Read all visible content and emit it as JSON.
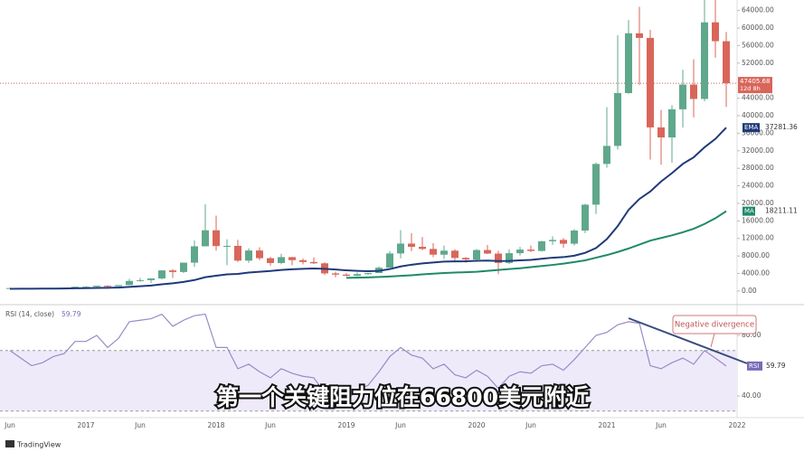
{
  "chart_data": {
    "type": "candlestick",
    "subtitle": "第一个关键阻力位在66800美元附近",
    "annotation": "Negative divergence",
    "brand": "TradingView",
    "countdown": "12d 8h",
    "up_color": "#5fa88c",
    "down_color": "#d9665a",
    "categories": [
      "Jun",
      null,
      null,
      null,
      null,
      null,
      null,
      "2017",
      null,
      null,
      null,
      null,
      "Jun",
      null,
      null,
      null,
      null,
      null,
      null,
      "2018",
      null,
      null,
      null,
      null,
      "Jun",
      null,
      null,
      null,
      null,
      null,
      null,
      "2019",
      null,
      null,
      null,
      null,
      "Jun",
      null,
      null,
      null,
      null,
      null,
      null,
      "2020",
      null,
      null,
      null,
      null,
      "Jun",
      null,
      null,
      null,
      null,
      null,
      null,
      "2021",
      null,
      null,
      null,
      null,
      "Jun",
      null,
      null,
      null,
      null,
      null,
      null,
      "2022"
    ],
    "ohlc": [
      [
        531,
        780,
        500,
        673
      ],
      [
        673,
        703,
        605,
        624
      ],
      [
        624,
        626,
        535,
        575
      ],
      [
        575,
        610,
        570,
        609
      ],
      [
        609,
        740,
        605,
        700
      ],
      [
        700,
        755,
        680,
        742
      ],
      [
        742,
        980,
        740,
        963
      ],
      [
        963,
        1150,
        750,
        970
      ],
      [
        970,
        1200,
        935,
        1190
      ],
      [
        1190,
        1290,
        890,
        1080
      ],
      [
        1080,
        1350,
        1075,
        1350
      ],
      [
        1350,
        2760,
        1350,
        2300
      ],
      [
        2300,
        2980,
        2100,
        2480
      ],
      [
        2480,
        2900,
        1830,
        2875
      ],
      [
        2875,
        4770,
        2670,
        4700
      ],
      [
        4700,
        4980,
        2980,
        4340
      ],
      [
        4340,
        6470,
        4100,
        6470
      ],
      [
        6470,
        11500,
        5500,
        10200
      ],
      [
        10200,
        19800,
        10700,
        13860
      ],
      [
        13860,
        17200,
        9200,
        10260
      ],
      [
        10260,
        11800,
        5900,
        10300
      ],
      [
        10300,
        11700,
        6600,
        6930
      ],
      [
        6930,
        9750,
        6430,
        9240
      ],
      [
        9240,
        9990,
        7050,
        7490
      ],
      [
        7490,
        7760,
        5780,
        6390
      ],
      [
        6390,
        8480,
        6080,
        7730
      ],
      [
        7730,
        7760,
        5880,
        7040
      ],
      [
        7040,
        7410,
        6100,
        6620
      ],
      [
        6620,
        7680,
        6180,
        6320
      ],
      [
        6320,
        6550,
        3650,
        4020
      ],
      [
        4020,
        4420,
        3120,
        3740
      ],
      [
        3740,
        4140,
        3350,
        3460
      ],
      [
        3460,
        4210,
        3390,
        3850
      ],
      [
        3850,
        4140,
        3700,
        4100
      ],
      [
        4100,
        5610,
        4080,
        5320
      ],
      [
        5320,
        9100,
        5320,
        8570
      ],
      [
        8570,
        13880,
        7450,
        10820
      ],
      [
        10820,
        13200,
        9080,
        10080
      ],
      [
        10080,
        12330,
        9320,
        9600
      ],
      [
        9600,
        10940,
        7710,
        8290
      ],
      [
        8290,
        10370,
        7300,
        9200
      ],
      [
        9200,
        9520,
        6520,
        7550
      ],
      [
        7550,
        7750,
        6430,
        7190
      ],
      [
        7190,
        9580,
        6850,
        9350
      ],
      [
        9350,
        10500,
        8450,
        8540
      ],
      [
        8540,
        9190,
        3850,
        6410
      ],
      [
        6410,
        9470,
        6150,
        8630
      ],
      [
        8630,
        10070,
        8110,
        9450
      ],
      [
        9450,
        10390,
        8900,
        9140
      ],
      [
        9140,
        11450,
        8970,
        11350
      ],
      [
        11350,
        12480,
        10520,
        11660
      ],
      [
        11660,
        12070,
        9880,
        10790
      ],
      [
        10790,
        14100,
        10380,
        13800
      ],
      [
        13800,
        19900,
        13200,
        19700
      ],
      [
        19700,
        29300,
        17600,
        28990
      ],
      [
        28990,
        41950,
        28130,
        33110
      ],
      [
        33110,
        58350,
        32300,
        45160
      ],
      [
        45160,
        61800,
        45000,
        58800
      ],
      [
        58800,
        64850,
        47000,
        57750
      ],
      [
        57750,
        59600,
        30000,
        37330
      ],
      [
        37330,
        41300,
        28800,
        35040
      ],
      [
        35040,
        42400,
        29300,
        41460
      ],
      [
        41460,
        50500,
        37300,
        47100
      ],
      [
        47100,
        52900,
        39600,
        43820
      ],
      [
        43820,
        67000,
        43300,
        61300
      ],
      [
        61300,
        69000,
        53250,
        57000
      ],
      [
        57000,
        59100,
        42000,
        47405.68
      ],
      null
    ],
    "series": [
      {
        "name": "EMA",
        "color": "#1f3a7a",
        "values": [
          500,
          520,
          530,
          545,
          560,
          580,
          620,
          660,
          710,
          740,
          790,
          940,
          1080,
          1250,
          1520,
          1770,
          2080,
          2500,
          3150,
          3480,
          3800,
          3900,
          4200,
          4400,
          4570,
          4800,
          4950,
          5050,
          5150,
          5050,
          4900,
          4720,
          4600,
          4520,
          4600,
          5000,
          5600,
          6000,
          6300,
          6500,
          6700,
          6750,
          6780,
          6880,
          6940,
          6840,
          6870,
          7000,
          7100,
          7350,
          7600,
          7730,
          8060,
          8710,
          9800,
          11830,
          14800,
          18500,
          21000,
          22700,
          25000,
          26900,
          29000,
          30500,
          32800,
          34700,
          37281.36,
          null
        ]
      },
      {
        "name": "MA",
        "color": "#1e8a6a",
        "values": [
          null,
          null,
          null,
          null,
          null,
          null,
          null,
          null,
          null,
          null,
          null,
          null,
          null,
          null,
          null,
          null,
          null,
          null,
          null,
          null,
          null,
          null,
          null,
          null,
          null,
          null,
          null,
          null,
          null,
          null,
          null,
          3000,
          3050,
          3100,
          3200,
          3300,
          3450,
          3600,
          3800,
          3950,
          4100,
          4200,
          4300,
          4400,
          4600,
          4800,
          5000,
          5200,
          5450,
          5700,
          5950,
          6250,
          6600,
          7000,
          7600,
          8200,
          8900,
          9700,
          10600,
          11500,
          12100,
          12700,
          13400,
          14200,
          15300,
          16600,
          18211.11,
          null
        ]
      }
    ],
    "ylim": [
      -2700,
      66400
    ],
    "yticks": [
      {
        "value": 0,
        "label": "0.00"
      },
      {
        "value": 4000,
        "label": "4000.00"
      },
      {
        "value": 8000,
        "label": "8000.00"
      },
      {
        "value": 12000,
        "label": "12000.00"
      },
      {
        "value": 16000,
        "label": "16000.00"
      },
      {
        "value": 20000,
        "label": "20000.00"
      },
      {
        "value": 24000,
        "label": "24000.00"
      },
      {
        "value": 28000,
        "label": "28000.00"
      },
      {
        "value": 32000,
        "label": "32000.00"
      },
      {
        "value": 36000,
        "label": "36000.00"
      },
      {
        "value": 40000,
        "label": "40000.00"
      },
      {
        "value": 44000,
        "label": "44000.00"
      },
      {
        "value": 52000,
        "label": "52000.00"
      },
      {
        "value": 56000,
        "label": "56000.00"
      },
      {
        "value": 60000,
        "label": "60000.00"
      },
      {
        "value": 64000,
        "label": "64000.00"
      }
    ],
    "rsi": {
      "name": "RSI",
      "label": "RSI (14, close)",
      "color": "#9a8ac8",
      "values": [
        70,
        65,
        60,
        62,
        66,
        68,
        76,
        76,
        80,
        72,
        78,
        89,
        90,
        91,
        94,
        86,
        90,
        93,
        94,
        72,
        72,
        58,
        61,
        56,
        52,
        58,
        55,
        53,
        52,
        42,
        38,
        37,
        44,
        47,
        56,
        66,
        72,
        67,
        65,
        58,
        61,
        54,
        52,
        57,
        53,
        45,
        53,
        56,
        55,
        60,
        61,
        57,
        64,
        72,
        80,
        82,
        87,
        89,
        88,
        60,
        58,
        62,
        65,
        61,
        70,
        65,
        59.79,
        null
      ],
      "ylim": [
        25.7,
        98.5
      ],
      "yticks": [
        {
          "value": 80,
          "label": "80.00"
        },
        {
          "value": 40,
          "label": "40.00"
        }
      ],
      "band": [
        30,
        70
      ]
    }
  }
}
